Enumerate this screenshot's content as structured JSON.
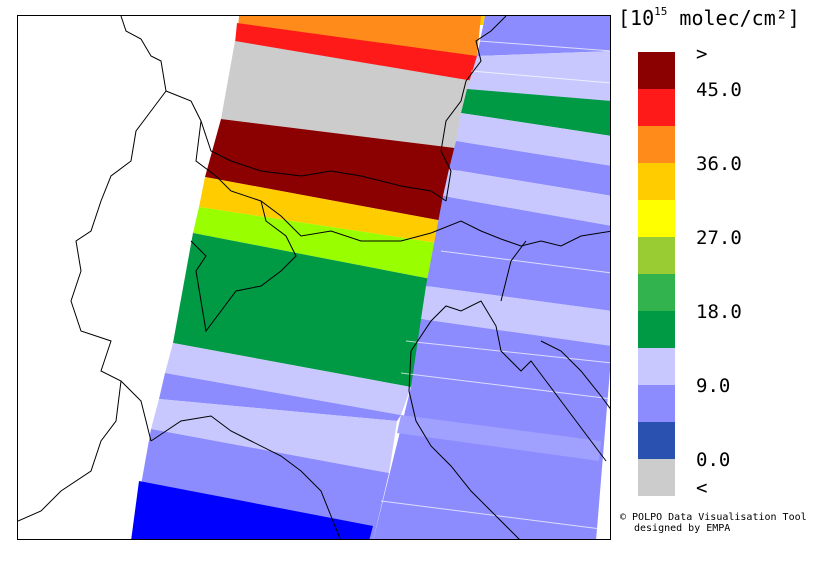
{
  "legend": {
    "unit_base": "[10",
    "unit_exp": "15",
    "unit_rest": " molec/cm²]",
    "colors": [
      "#8b0000",
      "#ff1a1a",
      "#ff8c1a",
      "#ffcc00",
      "#ffff00",
      "#99cc33",
      "#33b34d",
      "#009944",
      "#c8c8ff",
      "#8c8cff",
      "#2a50b0",
      "#cccccc"
    ],
    "labels": [
      ">",
      "45.0",
      "36.0",
      "27.0",
      "18.0",
      "9.0",
      "0.0",
      "<"
    ]
  },
  "credit": {
    "line1": "© POLPO Data Visualisation Tool",
    "line2": "designed by EMPA"
  }
}
